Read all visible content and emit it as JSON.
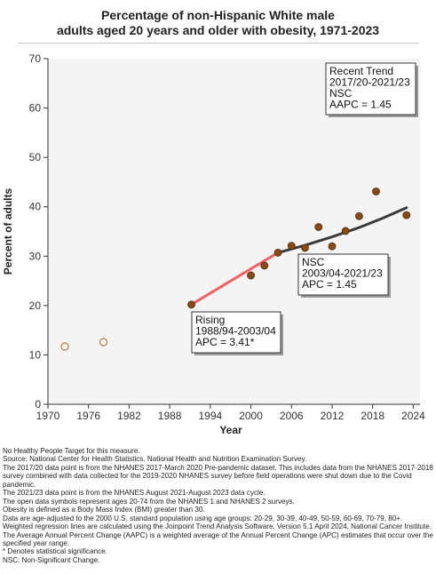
{
  "chart_data": {
    "type": "scatter",
    "title_lines": [
      "Percentage of non-Hispanic White male",
      "adults aged 20 years and older with obesity, 1971-2023"
    ],
    "xlabel": "Year",
    "ylabel": "Percent of adults",
    "xlim": [
      1970,
      2025
    ],
    "ylim": [
      0,
      70
    ],
    "x_ticks": [
      1970,
      1976,
      1982,
      1988,
      1994,
      2000,
      2006,
      2012,
      2018,
      2024
    ],
    "y_ticks": [
      0,
      10,
      20,
      30,
      40,
      50,
      60,
      70
    ],
    "grid": false,
    "series": [
      {
        "marker": "open-circle",
        "color": "#c0763a",
        "points": [
          {
            "x": 1972.5,
            "y": 11.7
          },
          {
            "x": 1978.2,
            "y": 12.6
          }
        ]
      },
      {
        "marker": "filled-circle",
        "color": "#8b4a14",
        "points": [
          {
            "x": 1991.2,
            "y": 20.2
          },
          {
            "x": 2000.0,
            "y": 26.1
          },
          {
            "x": 2002.0,
            "y": 28.1
          },
          {
            "x": 2004.0,
            "y": 30.7
          },
          {
            "x": 2006.0,
            "y": 32.1
          },
          {
            "x": 2008.0,
            "y": 31.7
          },
          {
            "x": 2010.0,
            "y": 35.9
          },
          {
            "x": 2012.0,
            "y": 32.0
          },
          {
            "x": 2014.0,
            "y": 35.1
          },
          {
            "x": 2016.0,
            "y": 38.1
          },
          {
            "x": 2018.5,
            "y": 43.1
          },
          {
            "x": 2023.0,
            "y": 38.3
          }
        ]
      }
    ],
    "trend_lines": [
      {
        "color": "#f06060",
        "points": [
          {
            "x": 1991.2,
            "y": 20.2
          },
          {
            "x": 2004.0,
            "y": 30.7
          }
        ]
      },
      {
        "color": "#3a3a3a",
        "points": [
          {
            "x": 2004.0,
            "y": 30.7
          },
          {
            "x": 2008.0,
            "y": 32.2
          },
          {
            "x": 2012.0,
            "y": 33.9
          },
          {
            "x": 2016.0,
            "y": 35.8
          },
          {
            "x": 2019.5,
            "y": 37.7
          },
          {
            "x": 2023.0,
            "y": 39.8
          }
        ]
      }
    ],
    "callouts": [
      {
        "lines": [
          "Recent Trend",
          "2017/20-2021/23",
          "NSC",
          "AAPC =  1.45"
        ]
      },
      {
        "lines": [
          "NSC",
          "2003/04-2021/23",
          "APC =  1.45"
        ]
      },
      {
        "lines": [
          "Rising",
          "1988/94-2003/04",
          "APC =  3.41*"
        ]
      }
    ]
  },
  "notes": [
    "No Healthy People Target for this measure.",
    "Source: National Center for Health Statistics. National Health and Nutrition Examination Survey.",
    "The 2017/20 data point is from the NHANES 2017-March 2020 Pre-pandemic dataset. This includes data from the NHANES 2017-2018 survey combined with data collected for the 2019-2020 NHANES survey before field operations were shut down due to the Covid pandemic.",
    "The 2021/23 data point is from the NHANES August 2021-August 2023 data cycle.",
    "The open data symbols represent ages 20-74 from the NHANES 1 and NHANES 2 surveys.",
    "Obesity is defined as a Body Mass Index (BMI) greater than 30.",
    "Data are age-adjusted to the 2000 U.S. standard population using age groups: 20-29, 30-39, 40-49, 50-59, 60-69, 70-79, 80+.",
    "Weighted regression lines are calculated using the Joinpoint Trend Analysis Software, Version 5.1 April 2024, National Cancer Institute.",
    "The Average Annual Percent Change (AAPC) is a weighted average of the Annual Percent Change (APC) estimates that occur over the specified year range.",
    "* Denotes statistical significance.",
    "NSC: Non-Significant Change."
  ]
}
